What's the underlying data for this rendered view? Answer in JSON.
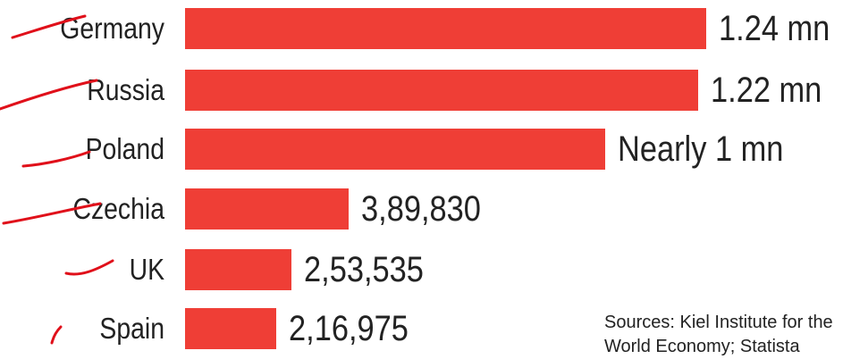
{
  "chart_data": {
    "type": "bar",
    "orientation": "horizontal",
    "title": "",
    "xlabel": "",
    "ylabel": "",
    "categories": [
      "Germany",
      "Russia",
      "Poland",
      "Czechia",
      "UK",
      "Spain"
    ],
    "values": [
      1240000,
      1220000,
      1000000,
      389830,
      253535,
      216975
    ],
    "value_labels": [
      "1.24 mn",
      "1.22 mn",
      "Nearly 1 mn",
      "3,89,830",
      "2,53,535",
      "2,16,975"
    ],
    "xlim": [
      0,
      1240000
    ],
    "grid": false,
    "legend": "none"
  },
  "colors": {
    "bar": "#ef3e36",
    "text": "#222222",
    "annotation": "#e0101a",
    "background": "#ffffff"
  },
  "sources": {
    "line1": "Sources: Kiel Institute for the",
    "line2": "World Economy; Statista"
  }
}
